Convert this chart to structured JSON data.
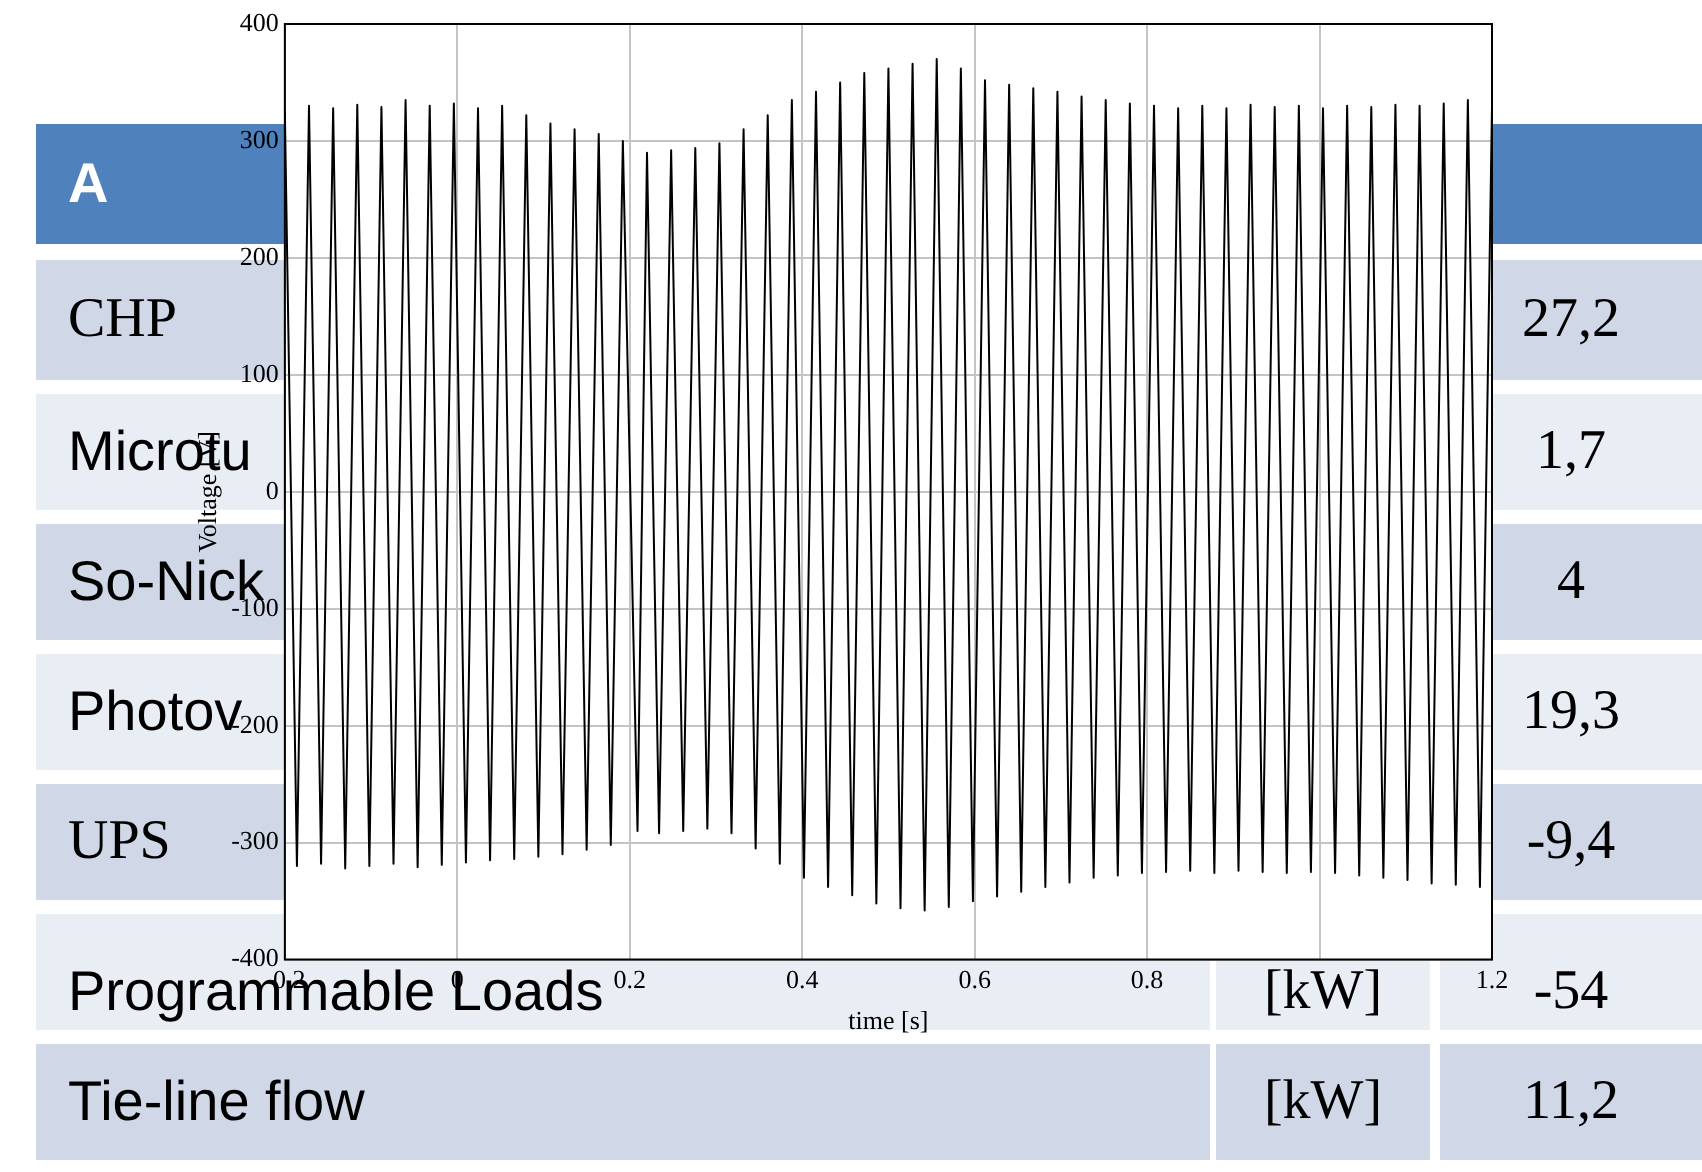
{
  "chart_data": {
    "type": "line",
    "xlabel": "time [s]",
    "ylabel": "Voltage [V]",
    "x": [
      -0.2,
      -0.186,
      -0.172,
      -0.158,
      -0.144,
      -0.13,
      -0.116,
      -0.102,
      -0.088,
      -0.074,
      -0.06,
      -0.046,
      -0.032,
      -0.018,
      -0.004,
      0.01,
      0.024,
      0.038,
      0.052,
      0.066,
      0.08,
      0.094,
      0.108,
      0.122,
      0.136,
      0.15,
      0.164,
      0.178,
      0.192,
      0.209,
      0.22,
      0.234,
      0.248,
      0.262,
      0.276,
      0.29,
      0.304,
      0.318,
      0.332,
      0.346,
      0.36,
      0.374,
      0.388,
      0.402,
      0.416,
      0.43,
      0.444,
      0.458,
      0.472,
      0.486,
      0.5,
      0.514,
      0.528,
      0.542,
      0.556,
      0.57,
      0.584,
      0.598,
      0.612,
      0.626,
      0.64,
      0.654,
      0.668,
      0.682,
      0.696,
      0.71,
      0.724,
      0.738,
      0.752,
      0.766,
      0.78,
      0.794,
      0.808,
      0.822,
      0.836,
      0.85,
      0.864,
      0.878,
      0.892,
      0.906,
      0.92,
      0.934,
      0.948,
      0.962,
      0.976,
      0.99,
      1.004,
      1.018,
      1.032,
      1.046,
      1.06,
      1.074,
      1.088,
      1.102,
      1.116,
      1.13,
      1.144,
      1.158,
      1.172,
      1.186,
      1.2
    ],
    "series": [
      {
        "color": "#000000",
        "values": [
          325,
          -320,
          330,
          -318,
          328,
          -322,
          331,
          -320,
          329,
          -318,
          335,
          -321,
          330,
          -319,
          332,
          -317,
          328,
          -315,
          330,
          -314,
          322,
          -312,
          315,
          -310,
          310,
          -306,
          306,
          -302,
          300,
          -290,
          290,
          -292,
          292,
          -290,
          294,
          -288,
          298,
          -292,
          310,
          -305,
          322,
          -318,
          335,
          -330,
          342,
          -338,
          350,
          -345,
          358,
          -352,
          362,
          -356,
          366,
          -358,
          370,
          -355,
          362,
          -350,
          352,
          -346,
          348,
          -342,
          345,
          -338,
          342,
          -334,
          338,
          -330,
          335,
          -328,
          332,
          -326,
          330,
          -325,
          328,
          -324,
          330,
          -326,
          328,
          -324,
          331,
          -325,
          329,
          -326,
          330,
          -325,
          328,
          -326,
          330,
          -328,
          329,
          -330,
          331,
          -332,
          330,
          -335,
          332,
          -336,
          335,
          -338,
          330
        ]
      }
    ],
    "xlim": [
      -0.2,
      1.2
    ],
    "xticks": [
      -0.2,
      0,
      0.2,
      0.4,
      0.6,
      0.8,
      {
        "value": 1,
        "label": null
      },
      1.2
    ],
    "ylim": [
      -400,
      400
    ],
    "yticks": [
      -400,
      -300,
      -200,
      -100,
      0,
      100,
      200,
      300,
      400
    ],
    "grid": true,
    "legend": false,
    "marker": "none",
    "line_style": "solid",
    "annotations": [
      "A",
      "CHP",
      "27,2",
      "Microtu",
      "1,7",
      "So-Nick",
      "4",
      "Photov",
      "19,3",
      "UPS",
      "-9,4",
      "Programmable Loads",
      "[kW]",
      "-54",
      "Tie-line flow",
      "[kW]",
      "11,2"
    ]
  }
}
